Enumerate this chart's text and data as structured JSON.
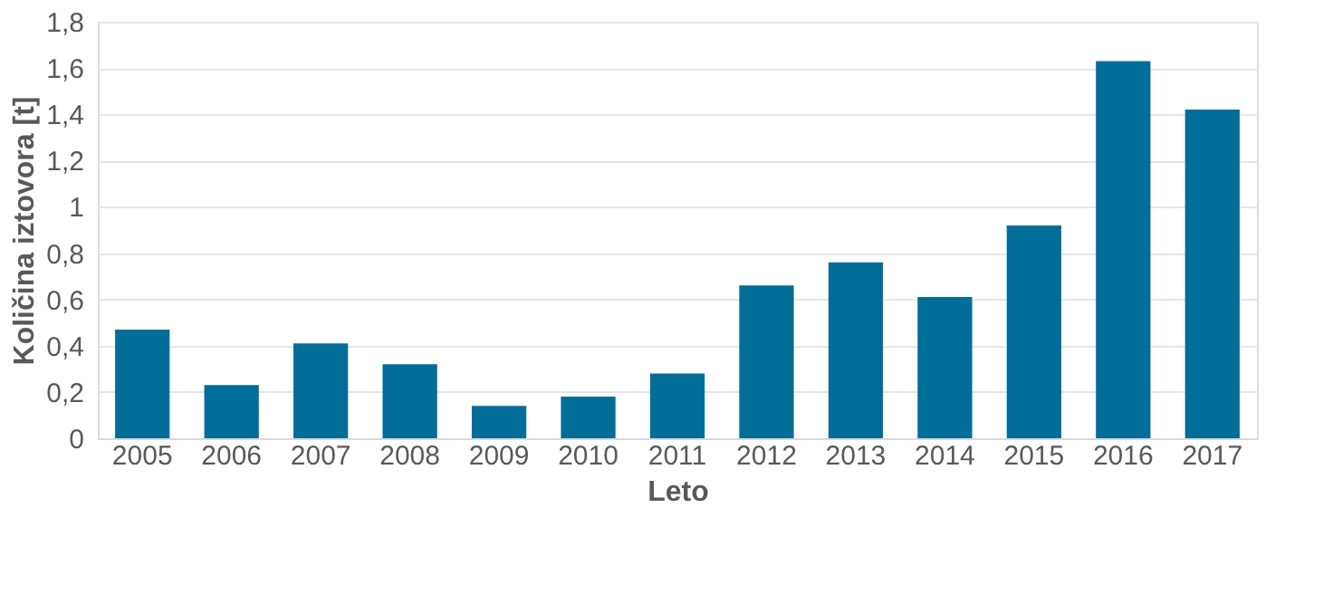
{
  "chart_data": {
    "type": "bar",
    "xlabel": "Leto",
    "ylabel": "Količina iztovora [t]",
    "categories": [
      "2005",
      "2006",
      "2007",
      "2008",
      "2009",
      "2010",
      "2011",
      "2012",
      "2013",
      "2014",
      "2015",
      "2016",
      "2017"
    ],
    "values": [
      0.47,
      0.23,
      0.41,
      0.32,
      0.14,
      0.18,
      0.28,
      0.66,
      0.76,
      0.61,
      0.92,
      1.63,
      1.42
    ],
    "color": "#006e99",
    "ylim": [
      0,
      1.8
    ],
    "yticks": [
      0,
      {
        "value": 0.2,
        "label": "0,2"
      },
      {
        "value": 0.4,
        "label": "0,4"
      },
      {
        "value": 0.6,
        "label": "0,6"
      },
      {
        "value": 0.8,
        "label": "0,8"
      },
      1,
      {
        "value": 1.2,
        "label": "1,2"
      },
      {
        "value": 1.4,
        "label": "1,4"
      },
      {
        "value": 1.6,
        "label": "1,6"
      },
      {
        "value": 1.8,
        "label": "1,8"
      }
    ],
    "grid": "y"
  }
}
